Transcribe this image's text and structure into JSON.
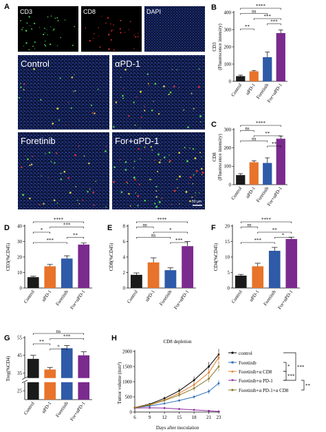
{
  "panels": {
    "A": {
      "letter": "A",
      "mini_labels": [
        "CD3",
        "CD8",
        "DAPI"
      ],
      "big_labels": [
        "Control",
        "αPD-1",
        "Foretinib",
        "For+αPD-1"
      ],
      "scale_bar": "50 µm"
    },
    "H": {
      "title": "CD8 depletion",
      "xlabel": "Days after inoculation",
      "ylabel": "Tumor volume (mm³)",
      "legend": [
        "control",
        "Foretinib",
        "Foretinib+α CD8",
        "Foretinib+α PD-1",
        "Foretinib+α PD-1+α CD8"
      ],
      "significance": [
        "*",
        "***",
        "***",
        "**"
      ]
    }
  },
  "chart_data": [
    {
      "id": "B",
      "letter": "B",
      "type": "bar",
      "categories": [
        "Control",
        "αPD-1",
        "Foretinib",
        "For+αPD-1"
      ],
      "values": [
        30,
        58,
        140,
        280
      ],
      "errors": [
        6,
        5,
        30,
        18
      ],
      "ylabel_lines": [
        "CD3",
        "(Fluorescence intensity)"
      ],
      "ylim": [
        0,
        400
      ],
      "yticks": [
        0,
        100,
        200,
        300,
        400
      ],
      "colors": [
        "#1a1a1a",
        "#e8732a",
        "#2e5aa8",
        "#7b2a8e"
      ],
      "brackets": [
        {
          "from": 0,
          "to": 3,
          "label": "****"
        },
        {
          "from": 0,
          "to": 2,
          "label": "ns"
        },
        {
          "from": 1,
          "to": 3,
          "label": "***"
        },
        {
          "from": 2,
          "to": 3,
          "label": "***"
        },
        {
          "from": 0,
          "to": 1,
          "label": "**"
        }
      ]
    },
    {
      "id": "C",
      "letter": "C",
      "type": "bar",
      "categories": [
        "Control",
        "αPD-1",
        "Foretinib",
        "For+αPD-1"
      ],
      "values": [
        52,
        122,
        118,
        250
      ],
      "errors": [
        8,
        8,
        28,
        15
      ],
      "ylabel_lines": [
        "CD8",
        "(Fluorescence intensity)"
      ],
      "ylim": [
        0,
        300
      ],
      "yticks": [
        0,
        100,
        200,
        300
      ],
      "colors": [
        "#1a1a1a",
        "#e8732a",
        "#2e5aa8",
        "#7b2a8e"
      ],
      "brackets": [
        {
          "from": 0,
          "to": 3,
          "label": "****"
        },
        {
          "from": 0,
          "to": 1,
          "label": "ns"
        },
        {
          "from": 1,
          "to": 3,
          "label": "**"
        },
        {
          "from": 0,
          "to": 2,
          "label": "ns"
        },
        {
          "from": 2,
          "to": 3,
          "label": "**"
        }
      ]
    },
    {
      "id": "D",
      "letter": "D",
      "type": "bar",
      "categories": [
        "Control",
        "αPD-1",
        "Foretinib",
        "For+αPD-1"
      ],
      "values": [
        7,
        14,
        19,
        28
      ],
      "errors": [
        0.6,
        1.2,
        1.8,
        1
      ],
      "ylabel_lines": [
        "CD3(%CD45)"
      ],
      "ylim": [
        0,
        40
      ],
      "yticks": [
        0,
        10,
        20,
        30,
        40
      ],
      "colors": [
        "#1a1a1a",
        "#e8732a",
        "#2e5aa8",
        "#7b2a8e"
      ],
      "brackets": [
        {
          "from": 0,
          "to": 3,
          "label": "****"
        },
        {
          "from": 1,
          "to": 3,
          "label": "***"
        },
        {
          "from": 0,
          "to": 1,
          "label": "*"
        },
        {
          "from": 2,
          "to": 3,
          "label": "**"
        },
        {
          "from": 0,
          "to": 2,
          "label": "***"
        }
      ]
    },
    {
      "id": "E",
      "letter": "E",
      "type": "bar",
      "categories": [
        "Control",
        "αPD-1",
        "Foretinib",
        "For+αPD-1"
      ],
      "values": [
        1.7,
        3.3,
        2.3,
        5.4
      ],
      "errors": [
        0.25,
        0.6,
        0.3,
        0.6
      ],
      "ylabel_lines": [
        "CD8(%CD45)"
      ],
      "ylim": [
        0,
        8
      ],
      "yticks": [
        0,
        2,
        4,
        6,
        8
      ],
      "colors": [
        "#1a1a1a",
        "#e8732a",
        "#2e5aa8",
        "#7b2a8e"
      ],
      "brackets": [
        {
          "from": 0,
          "to": 3,
          "label": "****"
        },
        {
          "from": 0,
          "to": 1,
          "label": "ns"
        },
        {
          "from": 1,
          "to": 3,
          "label": "*"
        },
        {
          "from": 0,
          "to": 2,
          "label": "ns"
        },
        {
          "from": 2,
          "to": 3,
          "label": "***"
        }
      ]
    },
    {
      "id": "F",
      "letter": "F",
      "type": "bar",
      "categories": [
        "Control",
        "αPD-1",
        "Foretinib",
        "For+αPD-1"
      ],
      "values": [
        4,
        7,
        12,
        15.8
      ],
      "errors": [
        0.4,
        1,
        1.1,
        0.6
      ],
      "ylabel_lines": [
        "CD4(%CD45)"
      ],
      "ylim": [
        0,
        20
      ],
      "yticks": [
        0,
        5,
        10,
        15,
        20
      ],
      "colors": [
        "#1a1a1a",
        "#e8732a",
        "#2e5aa8",
        "#7b2a8e"
      ],
      "brackets": [
        {
          "from": 0,
          "to": 3,
          "label": "****"
        },
        {
          "from": 0,
          "to": 1,
          "label": "ns"
        },
        {
          "from": 1,
          "to": 3,
          "label": "**"
        },
        {
          "from": 2,
          "to": 3,
          "label": "*"
        },
        {
          "from": 0,
          "to": 2,
          "label": "***"
        }
      ]
    },
    {
      "id": "G",
      "letter": "G",
      "type": "bar",
      "categories": [
        "Control",
        "αPD-1",
        "Foretinib",
        "For+αPD-1"
      ],
      "values": [
        43,
        37,
        49,
        45
      ],
      "errors": [
        2,
        1.2,
        1.5,
        2
      ],
      "ylabel_lines": [
        "Treg(%CD4)"
      ],
      "ylim": [
        20,
        55
      ],
      "yticks": [
        25,
        35,
        45,
        55
      ],
      "axis_break": true,
      "colors": [
        "#1a1a1a",
        "#e8732a",
        "#2e5aa8",
        "#7b2a8e"
      ],
      "brackets": [
        {
          "from": 0,
          "to": 3,
          "label": "ns"
        },
        {
          "from": 1,
          "to": 3,
          "label": "***"
        },
        {
          "from": 0,
          "to": 1,
          "label": "**"
        },
        {
          "from": 1,
          "to": 2,
          "label": "*"
        }
      ]
    },
    {
      "id": "H",
      "letter": "H",
      "type": "line",
      "x": [
        6,
        9,
        12,
        15,
        18,
        21,
        23
      ],
      "xlim": [
        6,
        23
      ],
      "xticks": [
        6,
        9,
        12,
        15,
        18,
        21,
        23
      ],
      "ylim": [
        0,
        2000
      ],
      "yticks": [
        0,
        500,
        1000,
        1500,
        2000
      ],
      "series": [
        {
          "name": "control",
          "color": "#000000",
          "values": [
            150,
            260,
            450,
            700,
            1050,
            1500,
            1900
          ],
          "errors": [
            20,
            30,
            60,
            80,
            120,
            150,
            180
          ]
        },
        {
          "name": "Foretinib",
          "color": "#2e6db5",
          "values": [
            140,
            200,
            280,
            380,
            500,
            680,
            950
          ],
          "errors": [
            15,
            20,
            30,
            40,
            60,
            80,
            100
          ]
        },
        {
          "name": "Foretinib+α CD8",
          "color": "#e08030",
          "values": [
            150,
            240,
            400,
            620,
            900,
            1300,
            1800
          ],
          "errors": [
            20,
            30,
            50,
            80,
            110,
            140,
            200
          ]
        },
        {
          "name": "Foretinib+α PD-1",
          "color": "#8e2aa0",
          "values": [
            130,
            140,
            130,
            100,
            70,
            40,
            20
          ],
          "errors": [
            10,
            15,
            15,
            15,
            10,
            8,
            5
          ]
        },
        {
          "name": "Foretinib+α PD-1+α CD8",
          "color": "#8a7a2a",
          "values": [
            140,
            230,
            380,
            560,
            780,
            1100,
            1500
          ],
          "errors": [
            20,
            30,
            50,
            70,
            90,
            120,
            150
          ]
        }
      ]
    }
  ]
}
